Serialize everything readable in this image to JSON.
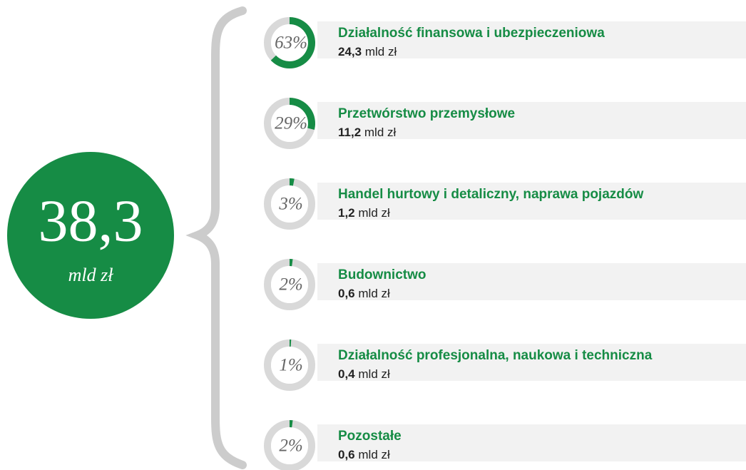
{
  "chart_data": {
    "type": "donut",
    "total_label": "38,3",
    "total_unit": "mld zł",
    "categories": [
      "Działalność finansowa i ubezpieczeniowa",
      "Przetwórstwo przemysłowe",
      "Handel hurtowy i detaliczny, naprawa pojazdów",
      "Budownictwo",
      "Działalność profesjonalna, naukowa i techniczna",
      "Pozostałe"
    ],
    "values": [
      63,
      29,
      3,
      2,
      1,
      2
    ],
    "value_labels": [
      "63%",
      "29%",
      "3%",
      "2%",
      "1%",
      "2%"
    ],
    "amount_labels": [
      "24,3",
      "11,2",
      "1,2",
      "0,6",
      "0,4",
      "0,6"
    ],
    "amount_unit": "mld zł",
    "color": "#168c45",
    "track_color": "#d9d9d9"
  }
}
